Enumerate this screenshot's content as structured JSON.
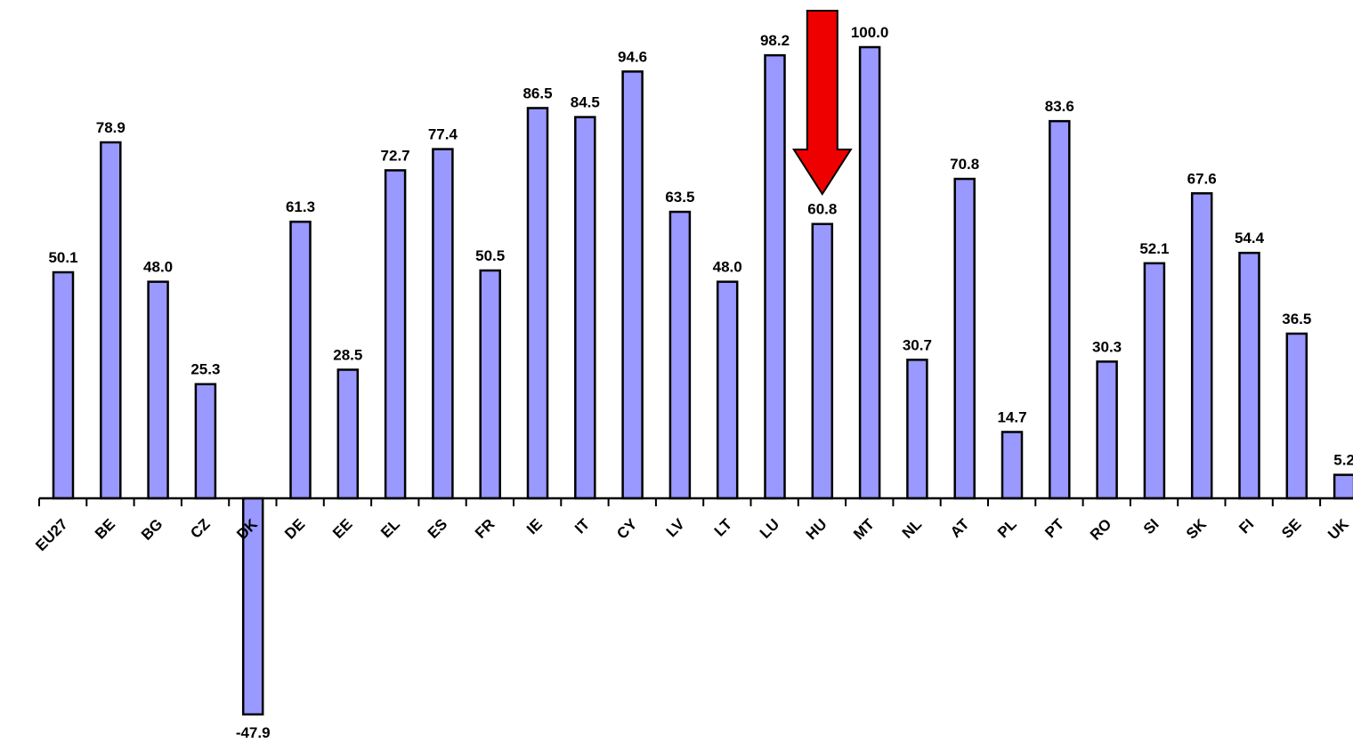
{
  "chart_data": {
    "type": "bar",
    "title": "",
    "xlabel": "",
    "ylabel": "",
    "categories": [
      "EU27",
      "BE",
      "BG",
      "CZ",
      "DK",
      "DE",
      "EE",
      "EL",
      "ES",
      "FR",
      "IE",
      "IT",
      "CY",
      "LV",
      "LT",
      "LU",
      "HU",
      "MT",
      "NL",
      "AT",
      "PL",
      "PT",
      "RO",
      "SI",
      "SK",
      "FI",
      "SE",
      "UK"
    ],
    "values": [
      50.1,
      78.9,
      48.0,
      25.3,
      -47.9,
      61.3,
      28.5,
      72.7,
      77.4,
      50.5,
      86.5,
      84.5,
      94.6,
      63.5,
      48.0,
      98.2,
      60.8,
      100.0,
      30.7,
      70.8,
      14.7,
      83.6,
      30.3,
      52.1,
      67.6,
      54.4,
      36.5,
      5.2
    ],
    "value_labels": [
      "50.1",
      "78.9",
      "48.0",
      "25.3",
      "-47.9",
      "61.3",
      "28.5",
      "72.7",
      "77.4",
      "50.5",
      "86.5",
      "84.5",
      "94.6",
      "63.5",
      "48.0",
      "98.2",
      "60.8",
      "100.0",
      "30.7",
      "70.8",
      "14.7",
      "83.6",
      "30.3",
      "52.1",
      "67.6",
      "54.4",
      "36.5",
      "5.2"
    ],
    "ylim": [
      -50,
      100
    ],
    "grid": false,
    "legend": "none",
    "bar_color": "#9999ff",
    "highlight": {
      "category": "HU",
      "marker": "down-arrow",
      "color": "#ee0000"
    }
  }
}
